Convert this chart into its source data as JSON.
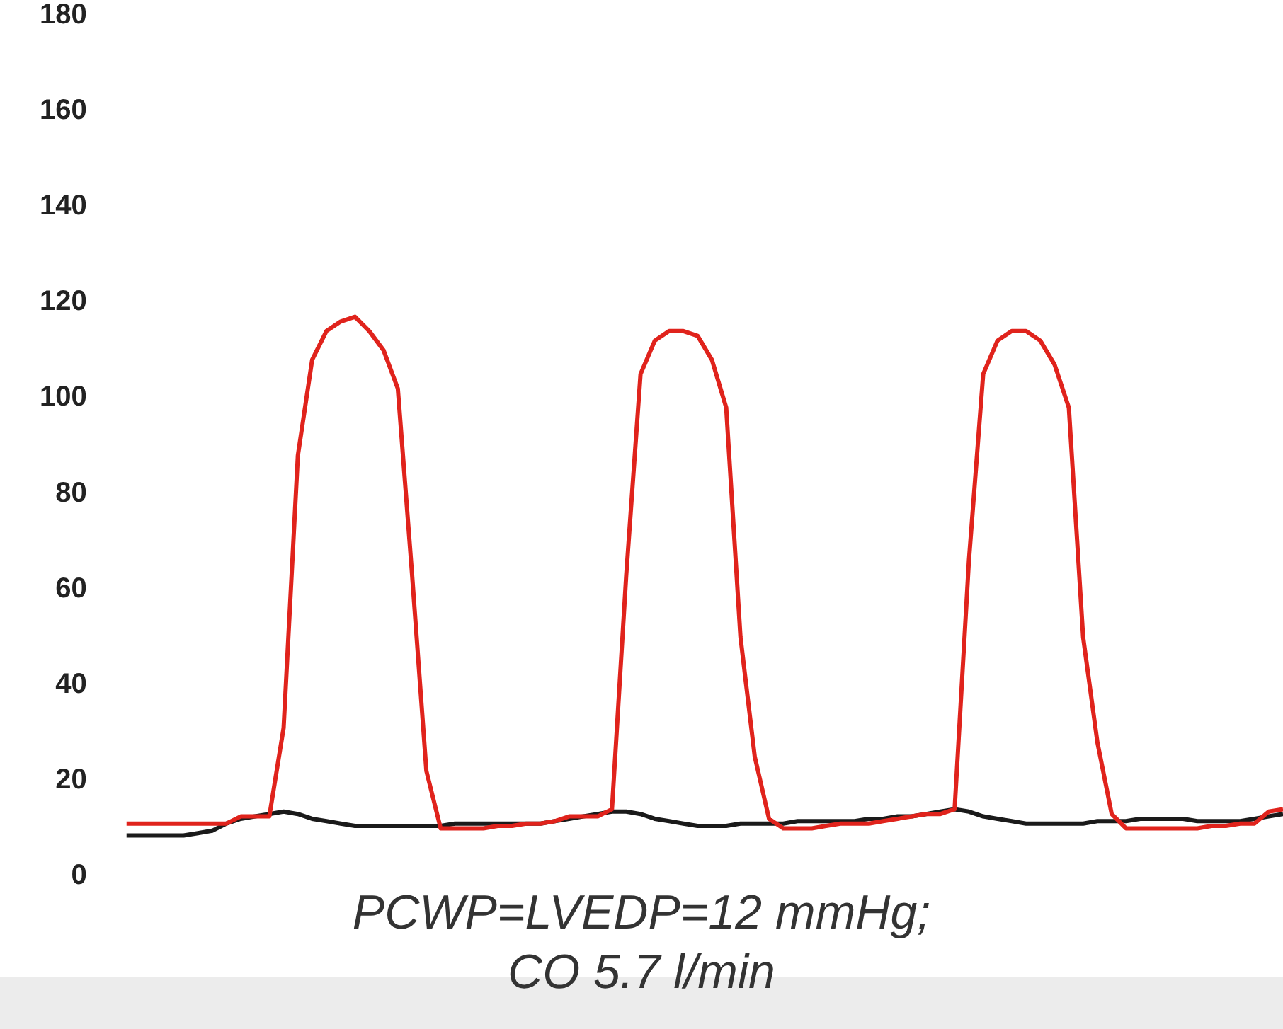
{
  "chart_data": {
    "type": "line",
    "categories": [
      null,
      null,
      null,
      null,
      null,
      null,
      null,
      null,
      null,
      null,
      null,
      null,
      null,
      null,
      null,
      null,
      null,
      null,
      null,
      null,
      null,
      null,
      null,
      null,
      null,
      null,
      null,
      null,
      null,
      null,
      null,
      null,
      null,
      null,
      null,
      null,
      null,
      null,
      null,
      null,
      null,
      null,
      null,
      null,
      null,
      null,
      null,
      null,
      null,
      null,
      null,
      null,
      null,
      null,
      null,
      null,
      null,
      null,
      null,
      null,
      null,
      null,
      null,
      null,
      null,
      null,
      null,
      null,
      null,
      null,
      null,
      null,
      null,
      null,
      null,
      null,
      null,
      null,
      null,
      null,
      null,
      null
    ],
    "series": [
      {
        "color": "#e0231c",
        "values": [
          11,
          11,
          11,
          11,
          11,
          11,
          11,
          11,
          12.5,
          12.5,
          12.5,
          31,
          88,
          108,
          114,
          116,
          117,
          114,
          110,
          102,
          63,
          22,
          10,
          10,
          10,
          10,
          10.5,
          10.5,
          11,
          11,
          11.5,
          12.5,
          12.5,
          12.5,
          14,
          63,
          105,
          112,
          114,
          114,
          113,
          108,
          98,
          50,
          25,
          12,
          10,
          10,
          10,
          10.5,
          11,
          11,
          11,
          11.5,
          12,
          12.5,
          13,
          13,
          14,
          66,
          105,
          112,
          114,
          114,
          112,
          107,
          98,
          50,
          28,
          13,
          10,
          10,
          10,
          10,
          10,
          10,
          10.5,
          10.5,
          11,
          11,
          13.5,
          14
        ]
      },
      {
        "color": "#1a1a1a",
        "values": [
          8.5,
          8.5,
          8.5,
          8.5,
          8.5,
          9,
          9.5,
          11,
          12,
          12.5,
          13,
          13.5,
          13,
          12,
          11.5,
          11,
          10.5,
          10.5,
          10.5,
          10.5,
          10.5,
          10.5,
          10.5,
          11,
          11,
          11,
          11,
          11,
          11,
          11,
          11.5,
          12,
          12.5,
          13,
          13.5,
          13.5,
          13,
          12,
          11.5,
          11,
          10.5,
          10.5,
          10.5,
          11,
          11,
          11,
          11,
          11.5,
          11.5,
          11.5,
          11.5,
          11.5,
          12,
          12,
          12.5,
          12.5,
          13,
          13.5,
          14,
          13.5,
          12.5,
          12,
          11.5,
          11,
          11,
          11,
          11,
          11,
          11.5,
          11.5,
          11.5,
          12,
          12,
          12,
          12,
          11.5,
          11.5,
          11.5,
          11.5,
          12,
          12.5,
          13
        ]
      }
    ],
    "ylim": [
      0,
      180
    ],
    "yticks": [
      0,
      20,
      40,
      60,
      80,
      100,
      120,
      140,
      160,
      180
    ],
    "grid": false,
    "legend": false,
    "tick_labels": "y",
    "marker": "none",
    "line_style": "solid",
    "annotations": [
      "PCWP=LVEDP=12 mmHg;",
      "CO 5.7 l/min"
    ]
  }
}
